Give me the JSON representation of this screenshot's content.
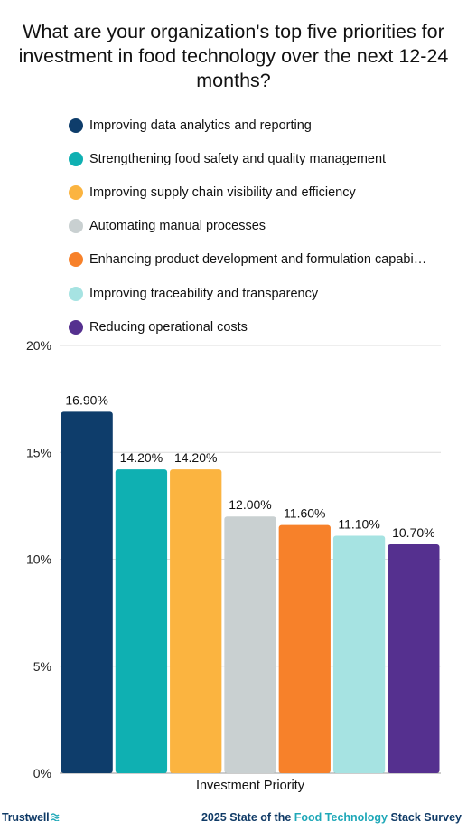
{
  "chart_data": {
    "type": "bar",
    "title": "What are your organization's top five priorities for investment in food technology over the next 12-24 months?",
    "xlabel": "Investment Priority",
    "ylabel": "",
    "ylim": [
      0,
      20
    ],
    "yticks": [
      "0%",
      "5%",
      "10%",
      "15%",
      "20%"
    ],
    "ytick_values": [
      0,
      5,
      10,
      15,
      20
    ],
    "grid": true,
    "legend_position": "top",
    "categories": [
      "Improving data analytics and reporting",
      "Strengthening food safety and quality management",
      "Improving supply chain visibility and efficiency",
      "Automating manual processes",
      "Enhancing product development and formulation capabi…",
      "Improving traceability and transparency",
      "Reducing operational costs"
    ],
    "values": [
      16.9,
      14.2,
      14.2,
      12.0,
      11.6,
      11.1,
      10.7
    ],
    "value_labels": [
      "16.90%",
      "14.20%",
      "14.20%",
      "12.00%",
      "11.60%",
      "11.10%",
      "10.70%"
    ],
    "colors": [
      "#0e3d6b",
      "#0fb0b2",
      "#fbb440",
      "#c9d0d1",
      "#f7812a",
      "#a6e3e2",
      "#55308f"
    ]
  },
  "footer": {
    "brand": "Trustwell",
    "brand_icon": "wave-icon",
    "survey_prefix": "2025 State of the ",
    "survey_accent": "Food Technology",
    "survey_suffix": " Stack Survey"
  }
}
